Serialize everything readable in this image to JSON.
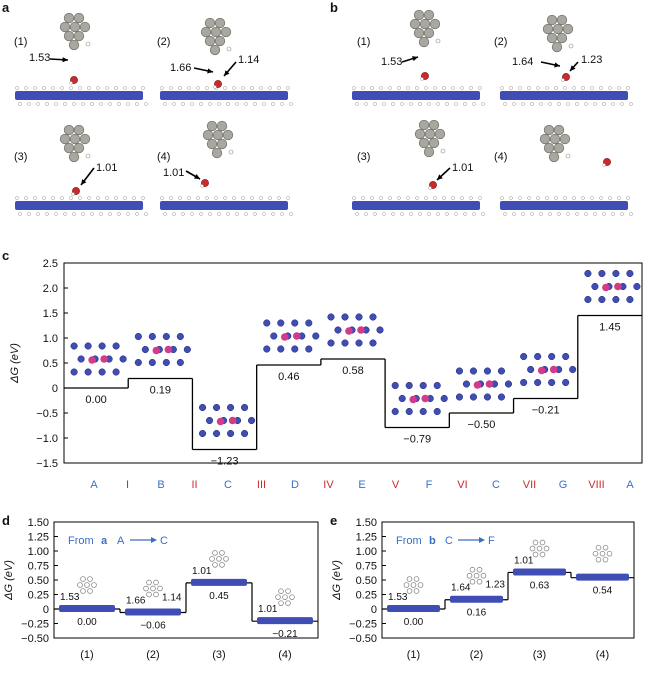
{
  "panels": {
    "a": "a",
    "b": "b",
    "c": "c",
    "d": "d",
    "e": "e"
  },
  "panel_a": {
    "structures": [
      {
        "id": "(1)",
        "distances": [
          "1.53"
        ]
      },
      {
        "id": "(2)",
        "distances": [
          "1.66",
          "1.14"
        ]
      },
      {
        "id": "(3)",
        "distances": [
          "1.01"
        ]
      },
      {
        "id": "(4)",
        "distances": [
          "1.01"
        ]
      }
    ]
  },
  "panel_b": {
    "structures": [
      {
        "id": "(1)",
        "distances": [
          "1.53"
        ]
      },
      {
        "id": "(2)",
        "distances": [
          "1.64",
          "1.23"
        ]
      },
      {
        "id": "(3)",
        "distances": [
          "1.01"
        ]
      },
      {
        "id": "(4)",
        "distances": []
      }
    ]
  },
  "colors": {
    "substrate": "#3f4db5",
    "highlight": "#d23b8a",
    "oxygen": "#cc2a2a",
    "metal": "#a8a8a0",
    "stroke": "#222222",
    "tick_blue": "#3a6fc4",
    "tick_red": "#cc2a2a"
  },
  "chart_data": [
    {
      "id": "c",
      "type": "line",
      "subtype": "step energy profile",
      "ylabel": "ΔG (eV)",
      "ylim": [
        -1.5,
        2.5
      ],
      "yticks": [
        "2.5",
        "2.0",
        "1.5",
        "1.0",
        "0.5",
        "0",
        "−0.5",
        "−1.0",
        "−1.5"
      ],
      "categories": [
        "A",
        "I",
        "B",
        "II",
        "C",
        "III",
        "D",
        "IV",
        "E",
        "V",
        "F",
        "VI",
        "C",
        "VII",
        "G",
        "VIII",
        "A"
      ],
      "category_colors": [
        "blue",
        "red",
        "blue",
        "red",
        "blue",
        "red",
        "blue",
        "red",
        "blue",
        "red",
        "blue",
        "red",
        "blue",
        "red",
        "blue",
        "red",
        "blue"
      ],
      "levels": [
        {
          "state": "A",
          "value": 0.0,
          "label": "0.00"
        },
        {
          "state": "B",
          "value": 0.19,
          "label": "0.19"
        },
        {
          "state": "C",
          "value": -1.23,
          "label": "−1.23"
        },
        {
          "state": "D",
          "value": 0.46,
          "label": "0.46"
        },
        {
          "state": "E",
          "value": 0.58,
          "label": "0.58"
        },
        {
          "state": "F",
          "value": -0.79,
          "label": "−0.79"
        },
        {
          "state": "C",
          "value": -0.5,
          "label": "−0.50"
        },
        {
          "state": "G",
          "value": -0.21,
          "label": "−0.21"
        },
        {
          "state": "A",
          "value": 1.45,
          "label": "1.45"
        }
      ]
    },
    {
      "id": "d",
      "type": "line",
      "subtype": "step energy profile",
      "ylabel": "ΔG (eV)",
      "ylim": [
        -0.5,
        1.5
      ],
      "yticks": [
        "1.50",
        "1.25",
        "1.00",
        "0.75",
        "0.50",
        "0.25",
        "0",
        "−0.25",
        "−0.50"
      ],
      "annotation": {
        "from": "From",
        "bold": "a",
        "start": "A",
        "end": "C"
      },
      "categories": [
        "(1)",
        "(2)",
        "(3)",
        "(4)"
      ],
      "values": [
        0.0,
        -0.06,
        0.45,
        -0.21
      ],
      "labels": [
        "0.00",
        "−0.06",
        "0.45",
        "−0.21"
      ],
      "distances": [
        [
          "1.53"
        ],
        [
          "1.66",
          "1.14"
        ],
        [
          "1.01"
        ],
        [
          "1.01"
        ]
      ]
    },
    {
      "id": "e",
      "type": "line",
      "subtype": "step energy profile",
      "ylabel": "ΔG (eV)",
      "ylim": [
        -0.5,
        1.5
      ],
      "yticks": [
        "1.50",
        "1.25",
        "1.00",
        "0.75",
        "0.50",
        "0.25",
        "0",
        "−0.25",
        "−0.50"
      ],
      "annotation": {
        "from": "From",
        "bold": "b",
        "start": "C",
        "end": "F"
      },
      "categories": [
        "(1)",
        "(2)",
        "(3)",
        "(4)"
      ],
      "values": [
        0.0,
        0.16,
        0.63,
        0.54
      ],
      "labels": [
        "0.00",
        "0.16",
        "0.63",
        "0.54"
      ],
      "distances": [
        [
          "1.53"
        ],
        [
          "1.64",
          "1.23"
        ],
        [
          "1.01"
        ],
        []
      ]
    }
  ]
}
